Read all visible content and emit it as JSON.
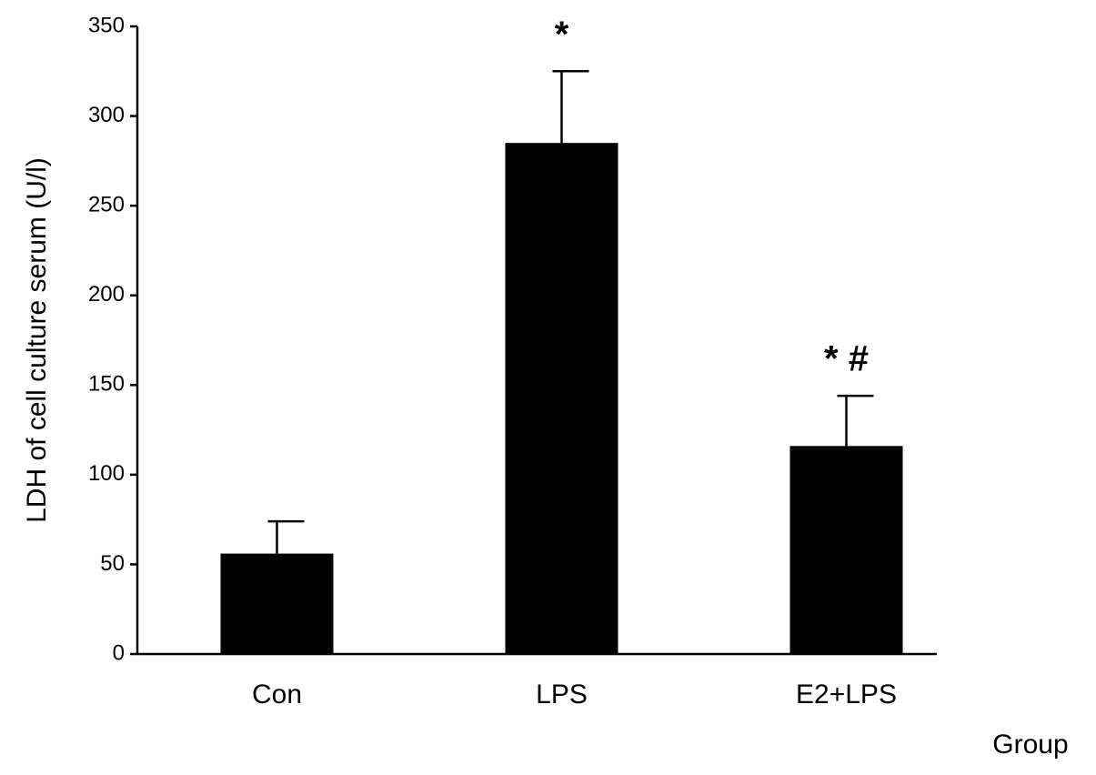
{
  "chart_data": {
    "type": "bar",
    "y_label": "LDH of cell culture serum (U/l)",
    "x_label": "Group",
    "categories": [
      "Con",
      "LPS",
      "E2+LPS"
    ],
    "values": [
      56,
      285,
      116
    ],
    "errors": [
      18,
      40,
      28
    ],
    "significance": [
      null,
      "*",
      "* #"
    ],
    "color": "#000000",
    "ylim": [
      0,
      350
    ],
    "yticks": [
      0,
      50,
      100,
      150,
      200,
      250,
      300,
      350
    ]
  }
}
